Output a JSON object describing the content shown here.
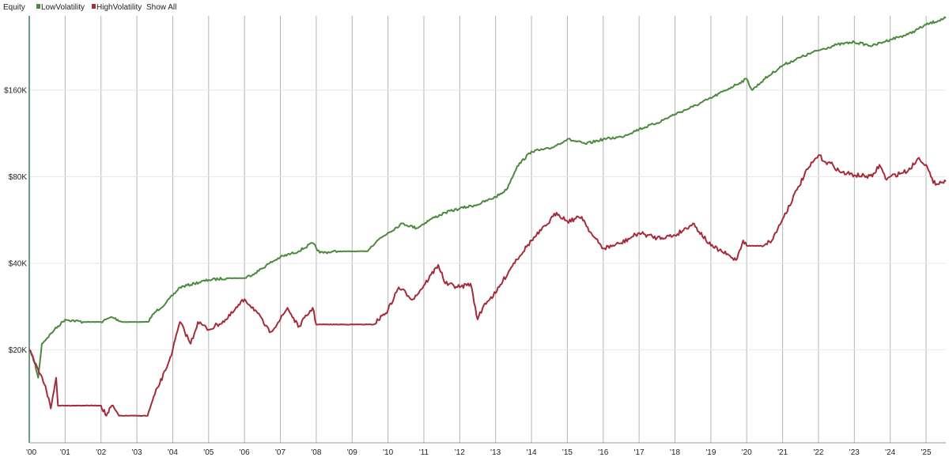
{
  "colors": {
    "low": "#4a8a3c",
    "high": "#a62b3a",
    "grid_vertical": "#b4b4b4",
    "grid_horizontal": "#e6e6e6",
    "axis": "#3a7a6a"
  },
  "legend": {
    "title": "Equity",
    "items": [
      {
        "label": "LowVolatility",
        "color": "#4a8a3c"
      },
      {
        "label": "HighVolatility",
        "color": "#a62b3a"
      }
    ],
    "show_all": "Show All"
  },
  "chart_data": {
    "type": "line",
    "title": "",
    "xlabel": "",
    "ylabel": "",
    "y_scale": "log",
    "ylim": [
      9500,
      290000
    ],
    "xlim": [
      2000.0,
      2025.55
    ],
    "grid": true,
    "legend_position": "top-left",
    "x_ticks": [
      {
        "value": 2000,
        "label": "'00"
      },
      {
        "value": 2001,
        "label": "'01"
      },
      {
        "value": 2002,
        "label": "'02"
      },
      {
        "value": 2003,
        "label": "'03"
      },
      {
        "value": 2004,
        "label": "'04"
      },
      {
        "value": 2005,
        "label": "'05"
      },
      {
        "value": 2006,
        "label": "'06"
      },
      {
        "value": 2007,
        "label": "'07"
      },
      {
        "value": 2008,
        "label": "'08"
      },
      {
        "value": 2009,
        "label": "'09"
      },
      {
        "value": 2010,
        "label": "'10"
      },
      {
        "value": 2011,
        "label": "'11"
      },
      {
        "value": 2012,
        "label": "'12"
      },
      {
        "value": 2013,
        "label": "'13"
      },
      {
        "value": 2014,
        "label": "'14"
      },
      {
        "value": 2015,
        "label": "'15"
      },
      {
        "value": 2016,
        "label": "'16"
      },
      {
        "value": 2017,
        "label": "'17"
      },
      {
        "value": 2018,
        "label": "'18"
      },
      {
        "value": 2019,
        "label": "'19"
      },
      {
        "value": 2020,
        "label": "'20"
      },
      {
        "value": 2021,
        "label": "'21"
      },
      {
        "value": 2022,
        "label": "'22"
      },
      {
        "value": 2023,
        "label": "'23"
      },
      {
        "value": 2024,
        "label": "'24"
      },
      {
        "value": 2025,
        "label": "'25"
      }
    ],
    "y_ticks": [
      {
        "value": 20000,
        "label": "$20K"
      },
      {
        "value": 40000,
        "label": "$40K"
      },
      {
        "value": 80000,
        "label": "$80K"
      },
      {
        "value": 160000,
        "label": "$160K"
      }
    ],
    "series": [
      {
        "name": "LowVolatility",
        "color": "#4a8a3c",
        "x": [
          2000.0,
          2000.1,
          2000.25,
          2000.35,
          2000.5,
          2000.7,
          2001.0,
          2001.5,
          2002.0,
          2002.3,
          2002.6,
          2003.0,
          2003.3,
          2003.5,
          2003.8,
          2004.2,
          2004.6,
          2005.0,
          2005.5,
          2006.0,
          2006.3,
          2006.7,
          2007.0,
          2007.5,
          2007.9,
          2008.1,
          2008.6,
          2009.0,
          2009.4,
          2009.7,
          2010.0,
          2010.4,
          2010.8,
          2011.2,
          2011.6,
          2012.0,
          2012.5,
          2013.0,
          2013.3,
          2013.6,
          2014.0,
          2014.5,
          2015.0,
          2015.5,
          2016.0,
          2016.5,
          2017.0,
          2017.5,
          2018.0,
          2018.5,
          2019.0,
          2019.5,
          2020.0,
          2020.15,
          2020.5,
          2021.0,
          2021.5,
          2022.0,
          2022.5,
          2023.0,
          2023.5,
          2023.8,
          2024.0,
          2024.5,
          2025.0,
          2025.55
        ],
        "values": [
          20000,
          19000,
          16000,
          21000,
          22000,
          23500,
          25500,
          25000,
          25000,
          26000,
          25000,
          25000,
          25000,
          27000,
          29000,
          33000,
          34000,
          35000,
          35500,
          35500,
          37000,
          40000,
          42000,
          44000,
          47000,
          43500,
          44000,
          44000,
          44000,
          48000,
          51000,
          55000,
          53000,
          57000,
          60000,
          62000,
          64000,
          68000,
          72000,
          87000,
          98000,
          100000,
          108000,
          104000,
          108000,
          110000,
          117000,
          123000,
          132000,
          140000,
          150000,
          162000,
          175000,
          160000,
          175000,
          195000,
          208000,
          220000,
          230000,
          235000,
          228000,
          235000,
          240000,
          250000,
          270000,
          285000
        ]
      },
      {
        "name": "HighVolatility",
        "color": "#a62b3a",
        "x": [
          2000.0,
          2000.15,
          2000.3,
          2000.45,
          2000.6,
          2000.75,
          2000.8,
          2001.0,
          2001.5,
          2002.0,
          2002.15,
          2002.3,
          2002.5,
          2003.0,
          2003.3,
          2003.5,
          2003.8,
          2004.0,
          2004.2,
          2004.5,
          2004.7,
          2005.0,
          2005.5,
          2006.0,
          2006.3,
          2006.7,
          2007.0,
          2007.2,
          2007.5,
          2007.9,
          2008.0,
          2008.5,
          2009.0,
          2009.3,
          2009.6,
          2010.0,
          2010.3,
          2010.7,
          2011.0,
          2011.4,
          2011.6,
          2012.0,
          2012.3,
          2012.5,
          2012.7,
          2013.0,
          2013.5,
          2014.0,
          2014.4,
          2014.7,
          2015.0,
          2015.4,
          2015.7,
          2016.0,
          2016.5,
          2017.0,
          2017.5,
          2018.0,
          2018.5,
          2019.0,
          2019.3,
          2019.7,
          2019.9,
          2020.0,
          2020.4,
          2020.7,
          2021.0,
          2021.4,
          2021.7,
          2022.0,
          2022.2,
          2022.4,
          2022.6,
          2023.0,
          2023.5,
          2023.7,
          2023.9,
          2024.0,
          2024.5,
          2024.8,
          2025.0,
          2025.2,
          2025.55
        ],
        "values": [
          20000,
          18000,
          16500,
          15000,
          12500,
          16000,
          12800,
          12800,
          12800,
          12800,
          11800,
          12800,
          11800,
          11800,
          11800,
          14000,
          17000,
          20000,
          25000,
          21000,
          25000,
          23500,
          25500,
          30000,
          27500,
          23000,
          25500,
          28000,
          24000,
          28000,
          24500,
          24500,
          24500,
          24500,
          24500,
          27500,
          33000,
          30000,
          33500,
          39500,
          34000,
          33000,
          34000,
          25500,
          29000,
          31500,
          40000,
          48000,
          54000,
          60000,
          56000,
          58000,
          50000,
          45000,
          47000,
          51000,
          49000,
          50000,
          55000,
          46000,
          44000,
          41000,
          48000,
          46000,
          46000,
          48000,
          57000,
          72000,
          85000,
          95000,
          90000,
          88000,
          83000,
          81000,
          80000,
          88000,
          78000,
          80000,
          84000,
          93000,
          88000,
          76000,
          77000
        ]
      }
    ]
  }
}
